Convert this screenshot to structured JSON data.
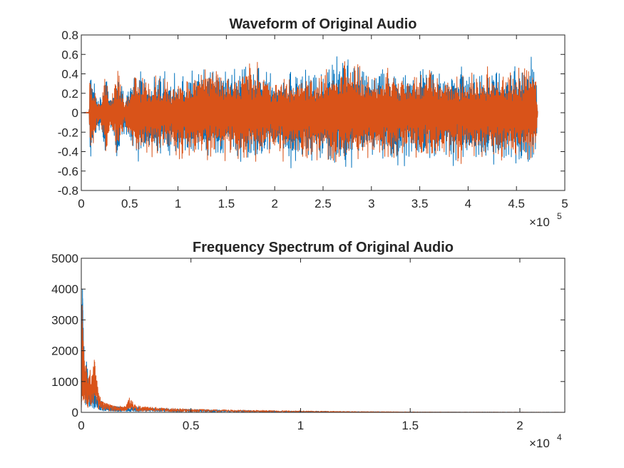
{
  "colors": {
    "series_1": "#0072BD",
    "series_2": "#D95319",
    "axes": "#262626"
  },
  "chart_data": [
    {
      "type": "line",
      "title": "Waveform of Original Audio",
      "xlabel": "",
      "ylabel": "",
      "xlim": [
        0,
        500000
      ],
      "ylim": [
        -0.8,
        0.8
      ],
      "x_ticks": [
        0,
        50000,
        100000,
        150000,
        200000,
        250000,
        300000,
        350000,
        400000,
        450000,
        500000
      ],
      "x_tick_labels": [
        "0",
        "0.5",
        "1",
        "1.5",
        "2",
        "2.5",
        "3",
        "3.5",
        "4",
        "4.5",
        "5"
      ],
      "x_multiplier": {
        "prefix": "×10",
        "exponent": "5"
      },
      "y_ticks": [
        -0.8,
        -0.6,
        -0.4,
        -0.2,
        0,
        0.2,
        0.4,
        0.6,
        0.8
      ],
      "y_tick_labels": [
        "-0.8",
        "-0.6",
        "-0.4",
        "-0.2",
        "0",
        "0.2",
        "0.4",
        "0.6",
        "0.8"
      ],
      "grid": false,
      "signal_range_x": [
        0,
        472000
      ],
      "series": [
        {
          "color_key": "series_1",
          "envelope": {
            "x": [
              0,
              8000,
              9000,
              11000,
              15000,
              20000,
              25000,
              30000,
              38000,
              45000,
              55000,
              65000,
              70000,
              80000,
              100000,
              120000,
              140000,
              160000,
              180000,
              200000,
              220000,
              240000,
              260000,
              280000,
              300000,
              320000,
              340000,
              360000,
              380000,
              400000,
              420000,
              440000,
              460000,
              465000,
              470000,
              472000
            ],
            "upper": [
              0,
              0.01,
              0.62,
              0.45,
              0.28,
              0.18,
              0.48,
              0.2,
              0.55,
              0.15,
              0.52,
              0.42,
              0.4,
              0.45,
              0.4,
              0.55,
              0.55,
              0.5,
              0.58,
              0.45,
              0.5,
              0.48,
              0.58,
              0.7,
              0.48,
              0.55,
              0.5,
              0.52,
              0.48,
              0.5,
              0.5,
              0.52,
              0.55,
              0.7,
              0.45,
              0.02
            ],
            "lower": [
              0,
              -0.01,
              -0.65,
              -0.5,
              -0.3,
              -0.18,
              -0.6,
              -0.22,
              -0.58,
              -0.2,
              -0.52,
              -0.55,
              -0.5,
              -0.48,
              -0.5,
              -0.58,
              -0.55,
              -0.62,
              -0.58,
              -0.5,
              -0.62,
              -0.55,
              -0.6,
              -0.7,
              -0.52,
              -0.6,
              -0.55,
              -0.6,
              -0.55,
              -0.58,
              -0.55,
              -0.62,
              -0.6,
              -0.65,
              -0.5,
              -0.02
            ]
          }
        },
        {
          "color_key": "series_2",
          "envelope": {
            "x": [
              0,
              8000,
              9000,
              11000,
              15000,
              20000,
              25000,
              30000,
              38000,
              45000,
              55000,
              65000,
              70000,
              80000,
              100000,
              120000,
              140000,
              160000,
              180000,
              200000,
              220000,
              240000,
              260000,
              280000,
              300000,
              320000,
              340000,
              360000,
              380000,
              400000,
              420000,
              440000,
              460000,
              465000,
              470000,
              472000
            ],
            "upper": [
              0,
              0.01,
              0.64,
              0.4,
              0.22,
              0.12,
              0.55,
              0.15,
              0.52,
              0.1,
              0.5,
              0.4,
              0.38,
              0.42,
              0.38,
              0.52,
              0.52,
              0.48,
              0.55,
              0.42,
              0.48,
              0.45,
              0.55,
              0.68,
              0.45,
              0.52,
              0.48,
              0.5,
              0.45,
              0.48,
              0.48,
              0.5,
              0.52,
              0.68,
              0.42,
              0.02
            ],
            "lower": [
              0,
              -0.01,
              -0.72,
              -0.45,
              -0.25,
              -0.14,
              -0.58,
              -0.18,
              -0.55,
              -0.15,
              -0.5,
              -0.52,
              -0.48,
              -0.45,
              -0.48,
              -0.55,
              -0.52,
              -0.6,
              -0.55,
              -0.48,
              -0.6,
              -0.52,
              -0.58,
              -0.68,
              -0.5,
              -0.58,
              -0.52,
              -0.58,
              -0.52,
              -0.55,
              -0.52,
              -0.6,
              -0.58,
              -0.62,
              -0.48,
              -0.02
            ]
          }
        }
      ]
    },
    {
      "type": "line",
      "title": "Frequency Spectrum of Original Audio",
      "xlabel": "",
      "ylabel": "",
      "xlim": [
        0,
        22050
      ],
      "ylim": [
        0,
        5000
      ],
      "x_ticks": [
        0,
        5000,
        10000,
        15000,
        20000
      ],
      "x_tick_labels": [
        "0",
        "0.5",
        "1",
        "1.5",
        "2"
      ],
      "x_multiplier": {
        "prefix": "×10",
        "exponent": "4"
      },
      "y_ticks": [
        0,
        1000,
        2000,
        3000,
        4000,
        5000
      ],
      "y_tick_labels": [
        "0",
        "1000",
        "2000",
        "3000",
        "4000",
        "5000"
      ],
      "grid": false,
      "series": [
        {
          "color_key": "series_1",
          "x": [
            0,
            20,
            40,
            60,
            80,
            100,
            130,
            160,
            200,
            250,
            300,
            400,
            500,
            600,
            800,
            1000,
            1200,
            1500,
            2000,
            2500,
            3000,
            4000,
            5000,
            6000,
            7000,
            8000,
            9000,
            10000,
            12000,
            14000,
            16000,
            18000,
            20000,
            22050
          ],
          "y": [
            200,
            2500,
            4700,
            3900,
            2800,
            3100,
            2200,
            1500,
            1200,
            1800,
            1300,
            900,
            1100,
            700,
            500,
            300,
            260,
            200,
            180,
            170,
            150,
            120,
            100,
            80,
            70,
            60,
            50,
            40,
            25,
            15,
            8,
            5,
            3,
            2
          ]
        },
        {
          "color_key": "series_2",
          "x": [
            0,
            20,
            40,
            60,
            80,
            100,
            130,
            160,
            200,
            250,
            300,
            400,
            500,
            600,
            800,
            1000,
            1200,
            1500,
            2000,
            2200,
            2500,
            3000,
            4000,
            5000,
            6000,
            7000,
            8000,
            9000,
            10000,
            12000,
            14000,
            16000,
            18000,
            20000,
            22050
          ],
          "y": [
            150,
            2000,
            3600,
            3200,
            2600,
            2300,
            1900,
            1300,
            1700,
            1400,
            1000,
            1600,
            1200,
            1800,
            600,
            350,
            280,
            220,
            200,
            480,
            220,
            180,
            140,
            110,
            90,
            80,
            70,
            60,
            50,
            30,
            20,
            10,
            6,
            4,
            3
          ]
        }
      ]
    }
  ]
}
